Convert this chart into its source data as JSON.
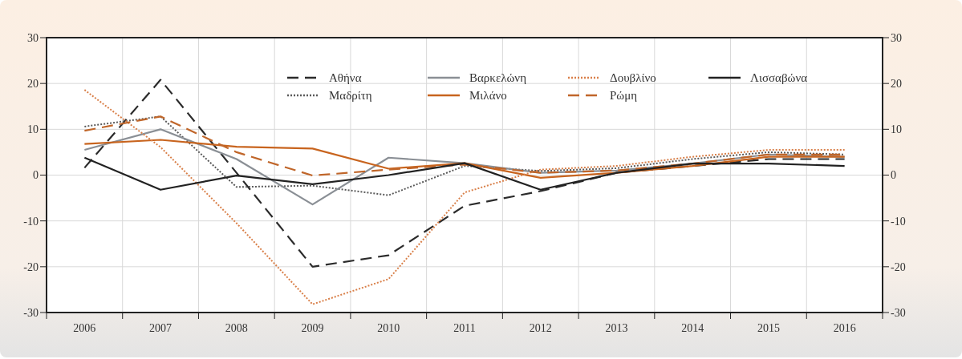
{
  "chart_data": {
    "type": "line",
    "categories": [
      "2006",
      "2007",
      "2008",
      "2009",
      "2010",
      "2011",
      "2012",
      "2013",
      "2014",
      "2015",
      "2016"
    ],
    "ylim": [
      -30,
      30
    ],
    "yticks": [
      -30,
      -20,
      -10,
      0,
      10,
      20,
      30
    ],
    "y2lim": [
      -30,
      30
    ],
    "y2ticks": [
      -30,
      -20,
      -10,
      0,
      10,
      20,
      30
    ],
    "grid": true,
    "legend": "top",
    "marker": "none",
    "series": [
      {
        "name": "Αθήνα",
        "color": "#2b2b2b",
        "line_style": "dashed",
        "values": [
          1.6,
          20.8,
          0.5,
          -20,
          -17.5,
          -6.7,
          -3.5,
          0.5,
          2,
          3.5,
          3.5
        ]
      },
      {
        "name": "Μαδρίτη",
        "color": "#5a5a5a",
        "line_style": "dotted",
        "values": [
          10.6,
          12.8,
          -2.6,
          -2.3,
          -4.4,
          2,
          0.9,
          1.5,
          3.5,
          5,
          4.5
        ]
      },
      {
        "name": "Βαρκελώνη",
        "color": "#8a8f95",
        "line_style": "solid",
        "values": [
          5.5,
          10,
          3.5,
          -6.4,
          3.8,
          2.6,
          0.5,
          1,
          2.5,
          4.5,
          4
        ]
      },
      {
        "name": "Μιλάνο",
        "color": "#c8641e",
        "line_style": "solid",
        "values": [
          6.8,
          7.7,
          6.2,
          5.8,
          1.4,
          2.6,
          -0.6,
          0.5,
          2,
          4,
          4
        ]
      },
      {
        "name": "Δουβλίνο",
        "color": "#d9804a",
        "line_style": "dotted",
        "values": [
          18.6,
          6.1,
          -10.5,
          -28.2,
          -22.7,
          -3.8,
          1.2,
          2,
          4,
          5.5,
          5.5
        ]
      },
      {
        "name": "Ρώμη",
        "color": "#c0662a",
        "line_style": "dashed",
        "values": [
          9.7,
          12.8,
          5,
          -0.1,
          1.2,
          2.3,
          0.5,
          1,
          2.5,
          4.5,
          4.5
        ]
      },
      {
        "name": "Λισσαβώνα",
        "color": "#222222",
        "line_style": "solid",
        "values": [
          3.8,
          -3.2,
          -0.1,
          -2,
          0,
          2.6,
          -3.2,
          0.5,
          2.5,
          2.5,
          2
        ]
      }
    ]
  }
}
